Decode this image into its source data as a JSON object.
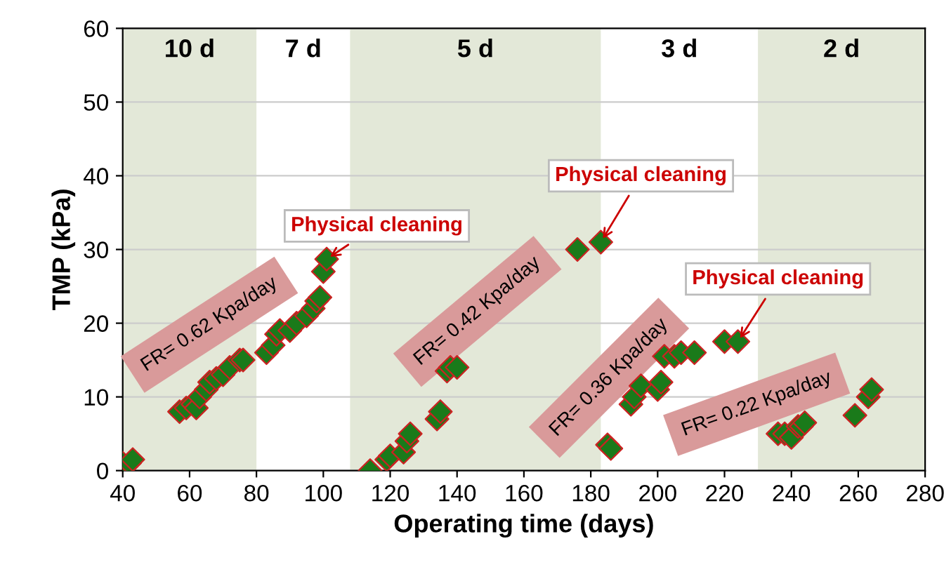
{
  "chart_data": {
    "type": "scatter",
    "xlabel": "Operating time (days)",
    "ylabel": "TMP (kPa)",
    "xlim": [
      40,
      280
    ],
    "xticks": [
      40,
      60,
      80,
      100,
      120,
      140,
      160,
      180,
      200,
      220,
      240,
      260,
      280
    ],
    "ylim": [
      0,
      60
    ],
    "yticks": [
      0,
      10,
      20,
      30,
      40,
      50,
      60
    ],
    "grid": "y",
    "marker": "diamond",
    "series": [
      {
        "color": "#1a7a1a",
        "x": [
          40,
          42,
          43,
          57,
          59,
          61,
          62,
          63,
          65,
          66,
          68,
          70,
          72,
          75,
          76,
          83,
          85,
          86,
          87,
          90,
          92,
          95,
          97,
          98,
          99,
          100,
          101,
          114,
          119,
          120,
          124,
          125,
          126,
          134,
          135,
          137,
          138,
          140,
          176,
          183,
          185,
          186,
          192,
          193,
          195,
          200,
          201,
          202,
          205,
          207,
          211,
          220,
          224,
          236,
          238,
          240,
          242,
          243,
          244,
          259,
          263,
          264
        ],
        "values": [
          1,
          1,
          1.5,
          8,
          8.5,
          9,
          8.5,
          10,
          11,
          12,
          12.5,
          13,
          14,
          15,
          15,
          16,
          17,
          18.5,
          19,
          19,
          20,
          21,
          22,
          23,
          23.5,
          27,
          28.7,
          0,
          1.5,
          2,
          2.5,
          4,
          5,
          7,
          8,
          13.5,
          14,
          14,
          30,
          31,
          3.5,
          3,
          9,
          10,
          11.5,
          11,
          12,
          15.5,
          15.5,
          16,
          16,
          17.5,
          17.5,
          5,
          5,
          4.5,
          6,
          6,
          6.5,
          7.5,
          10,
          11
        ]
      }
    ],
    "bands": [
      {
        "axis": "x",
        "from": 40,
        "to": 80,
        "label": "10 d",
        "color": "#e3e8d8"
      },
      {
        "axis": "x",
        "from": 108,
        "to": 183,
        "label": "5 d",
        "color": "#e3e8d8"
      },
      {
        "axis": "x",
        "from": 230,
        "to": 280,
        "label": "2 d",
        "color": "#e3e8d8"
      }
    ],
    "annotations": [
      "FR= 0.62 Kpa/day",
      "FR= 0.42 Kpa/day",
      "FR= 0.36 Kpa/day",
      "FR= 0.22 Kpa/day",
      "7 d",
      "3 d",
      {
        "text": "Physical cleaning",
        "x": 101,
        "y": 28.7
      },
      {
        "text": "Physical cleaning",
        "x": 183,
        "y": 31
      },
      {
        "text": "Physical cleaning",
        "x": 224,
        "y": 17.5
      }
    ]
  }
}
